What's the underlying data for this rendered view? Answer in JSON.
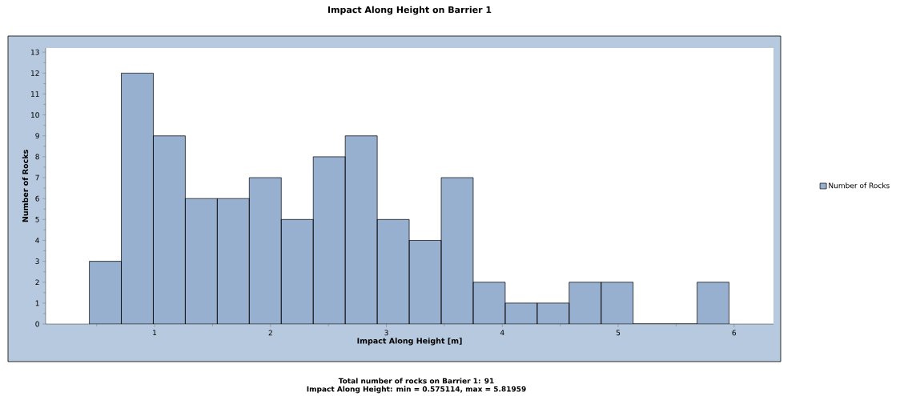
{
  "chart_data": {
    "type": "histogram",
    "title": "Impact Along Height on Barrier 1",
    "xlabel": "Impact Along Height [m]",
    "ylabel": "Number of Rocks",
    "bins": [
      0.437,
      0.713,
      0.989,
      1.265,
      1.541,
      1.817,
      2.093,
      2.369,
      2.645,
      2.921,
      3.197,
      3.473,
      3.749,
      4.025,
      4.301,
      4.577,
      4.853,
      5.129,
      5.405,
      5.681,
      5.957
    ],
    "series": [
      {
        "name": "Number of Rocks",
        "color": "#97b0cf",
        "values": [
          3,
          12,
          9,
          6,
          6,
          7,
          5,
          8,
          9,
          5,
          4,
          7,
          2,
          1,
          1,
          2,
          2,
          0,
          0,
          2
        ]
      }
    ],
    "xlim": [
      0.06,
      6.34
    ],
    "ylim": [
      0,
      13.2
    ],
    "xticks": [
      {
        "value": 0.5,
        "label": null
      },
      1,
      {
        "value": 1.5,
        "label": null
      },
      2,
      {
        "value": 2.5,
        "label": null
      },
      3,
      {
        "value": 3.5,
        "label": null
      },
      4,
      {
        "value": 4.5,
        "label": null
      },
      5,
      {
        "value": 5.5,
        "label": null
      },
      6
    ],
    "yticks": [
      0,
      {
        "value": 0.5,
        "label": null
      },
      1,
      {
        "value": 1.5,
        "label": null
      },
      2,
      {
        "value": 2.5,
        "label": null
      },
      3,
      {
        "value": 3.5,
        "label": null
      },
      4,
      {
        "value": 4.5,
        "label": null
      },
      5,
      {
        "value": 5.5,
        "label": null
      },
      6,
      {
        "value": 6.5,
        "label": null
      },
      7,
      {
        "value": 7.5,
        "label": null
      },
      8,
      {
        "value": 8.5,
        "label": null
      },
      9,
      {
        "value": 9.5,
        "label": null
      },
      10,
      {
        "value": 10.5,
        "label": null
      },
      11,
      {
        "value": 11.5,
        "label": null
      },
      12,
      {
        "value": 12.5,
        "label": null
      },
      13
    ],
    "legend": "right",
    "annotations": [
      "Total number of rocks on Barrier 1:  91",
      "Impact Along Height:  min = 0.575114,  max = 5.81959"
    ]
  }
}
